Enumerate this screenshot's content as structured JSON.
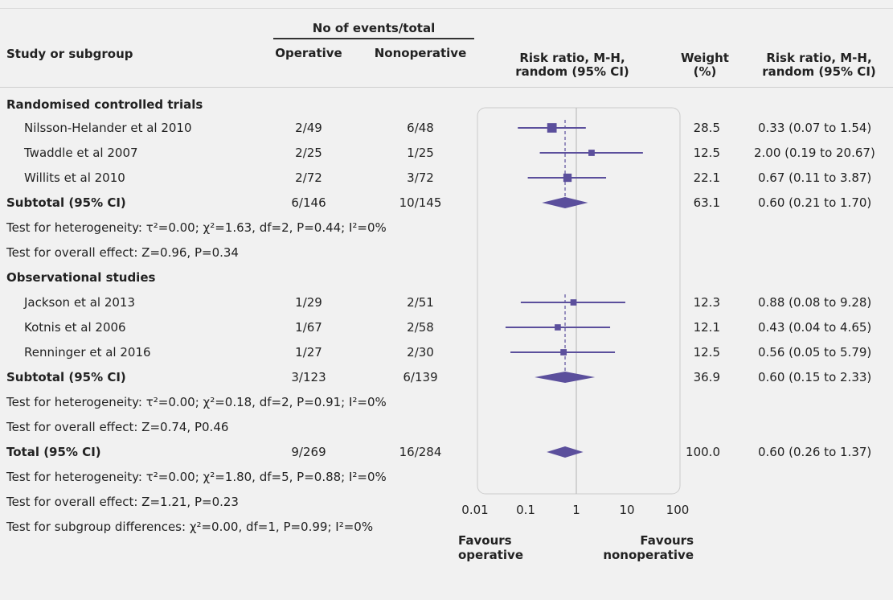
{
  "header": {
    "study": "Study or subgroup",
    "events_group": "No of events/total",
    "operative": "Operative",
    "nonoperative": "Nonoperative",
    "plot_col_line1": "Risk ratio, M-H,",
    "plot_col_line2": "random (95% CI)",
    "weight_line1": "Weight",
    "weight_line2": "(%)",
    "rr_col_line1": "Risk ratio, M-H,",
    "rr_col_line2": "random (95% CI)"
  },
  "chart_data": {
    "type": "forest",
    "scale": "log",
    "xlim": [
      0.01,
      100
    ],
    "x_ticks": [
      "0.01",
      "0.1",
      "1",
      "10",
      "100"
    ],
    "x_tick_values": [
      0.01,
      0.1,
      1,
      10,
      100
    ],
    "null_line": 1,
    "favours_left": [
      "Favours",
      "operative"
    ],
    "favours_right": [
      "Favours",
      "nonoperative"
    ],
    "color": "#5b4f9c",
    "groups": [
      {
        "label": "Randomised controlled trials",
        "studies": [
          {
            "name": "Nilsson-Helander et al 2010",
            "operative": "2/49",
            "nonoperative": "6/48",
            "weight": "28.5",
            "ci_text": "0.33 (0.07 to 1.54)",
            "rr": 0.33,
            "lo": 0.07,
            "hi": 1.54
          },
          {
            "name": "Twaddle et al 2007",
            "operative": "2/25",
            "nonoperative": "1/25",
            "weight": "12.5",
            "ci_text": "2.00 (0.19 to 20.67)",
            "rr": 2.0,
            "lo": 0.19,
            "hi": 20.67
          },
          {
            "name": "Willits et al 2010",
            "operative": "2/72",
            "nonoperative": "3/72",
            "weight": "22.1",
            "ci_text": "0.67 (0.11 to 3.87)",
            "rr": 0.67,
            "lo": 0.11,
            "hi": 3.87
          }
        ],
        "subtotal": {
          "label": "Subtotal (95% CI)",
          "operative": "6/146",
          "nonoperative": "10/145",
          "weight": "63.1",
          "ci_text": "0.60 (0.21 to 1.70)",
          "rr": 0.6,
          "lo": 0.21,
          "hi": 1.7
        },
        "heterogeneity": "Test for heterogeneity: τ²=0.00; χ²=1.63, df=2, P=0.44; I²=0%",
        "overall": "Test for overall effect: Z=0.96, P=0.34"
      },
      {
        "label": "Observational studies",
        "studies": [
          {
            "name": "Jackson et al 2013",
            "operative": "1/29",
            "nonoperative": "2/51",
            "weight": "12.3",
            "ci_text": "0.88 (0.08 to 9.28)",
            "rr": 0.88,
            "lo": 0.08,
            "hi": 9.28
          },
          {
            "name": "Kotnis et al 2006",
            "operative": "1/67",
            "nonoperative": "2/58",
            "weight": "12.1",
            "ci_text": "0.43 (0.04 to 4.65)",
            "rr": 0.43,
            "lo": 0.04,
            "hi": 4.65
          },
          {
            "name": "Renninger et al 2016",
            "operative": "1/27",
            "nonoperative": "2/30",
            "weight": "12.5",
            "ci_text": "0.56 (0.05 to 5.79)",
            "rr": 0.56,
            "lo": 0.05,
            "hi": 5.79
          }
        ],
        "subtotal": {
          "label": "Subtotal (95% CI)",
          "operative": "3/123",
          "nonoperative": "6/139",
          "weight": "36.9",
          "ci_text": "0.60 (0.15 to 2.33)",
          "rr": 0.6,
          "lo": 0.15,
          "hi": 2.33
        },
        "heterogeneity": "Test for heterogeneity: τ²=0.00; χ²=0.18, df=2, P=0.91; I²=0%",
        "overall": "Test for overall effect: Z=0.74, P0.46"
      }
    ],
    "total": {
      "label": "Total (95% CI)",
      "operative": "9/269",
      "nonoperative": "16/284",
      "weight": "100.0",
      "ci_text": "0.60 (0.26 to 1.37)",
      "rr": 0.6,
      "lo": 0.26,
      "hi": 1.37
    },
    "total_heterogeneity": "Test for heterogeneity: τ²=0.00; χ²=1.80, df=5, P=0.88; I²=0%",
    "total_overall": "Test for overall effect: Z=1.21, P=0.23",
    "subgroup_differences": "Test for subgroup differences: χ²=0.00, df=1, P=0.99; I²=0%"
  }
}
